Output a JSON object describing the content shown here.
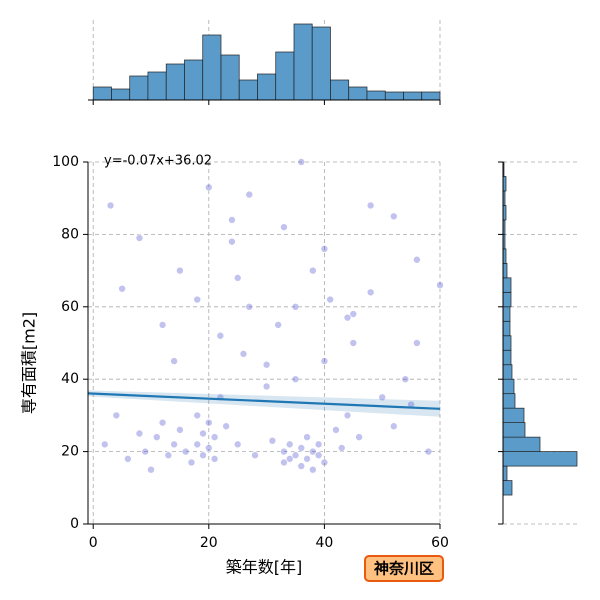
{
  "chart_data": [
    {
      "type": "scatter",
      "xlabel": "築年数[年]",
      "ylabel": "専有面積[m2]",
      "x": [
        2,
        4,
        6,
        8,
        9,
        10,
        11,
        12,
        13,
        14,
        15,
        16,
        17,
        18,
        18,
        19,
        19,
        20,
        20,
        21,
        21,
        22,
        23,
        24,
        25,
        26,
        27,
        28,
        30,
        31,
        32,
        33,
        33,
        34,
        34,
        35,
        35,
        36,
        36,
        37,
        37,
        38,
        38,
        39,
        39,
        40,
        40,
        41,
        42,
        43,
        44,
        45,
        46,
        48,
        50,
        52,
        54,
        56,
        58,
        60,
        5,
        8,
        12,
        15,
        18,
        20,
        22,
        24,
        27,
        30,
        33,
        36,
        38,
        40,
        44,
        48,
        52,
        56,
        3,
        14,
        25,
        35,
        45,
        55
      ],
      "y": [
        22,
        30,
        18,
        25,
        20,
        15,
        24,
        28,
        19,
        22,
        26,
        20,
        17,
        30,
        22,
        25,
        19,
        28,
        21,
        24,
        18,
        35,
        27,
        84,
        22,
        47,
        91,
        19,
        38,
        23,
        55,
        20,
        17,
        22,
        18,
        40,
        19,
        21,
        16,
        24,
        18,
        20,
        15,
        22,
        19,
        45,
        17,
        62,
        26,
        21,
        30,
        58,
        24,
        88,
        35,
        27,
        40,
        73,
        20,
        66,
        65,
        79,
        55,
        70,
        62,
        93,
        52,
        78,
        60,
        44,
        82,
        100,
        70,
        76,
        57,
        64,
        85,
        50,
        88,
        45,
        68,
        60,
        50,
        33
      ],
      "color": "#5050d0",
      "xlim": [
        -0.9,
        60
      ],
      "ylim": [
        0,
        100
      ],
      "xticks": [
        0,
        20,
        40,
        60
      ],
      "yticks": [
        0,
        20,
        40,
        60,
        80,
        100
      ],
      "grid": true,
      "regression": {
        "label": "y=-0.07x+36.02",
        "slope": -0.07,
        "intercept": 36.02,
        "color": "#1f77b4"
      },
      "annotation": "神奈川区"
    },
    {
      "type": "histogram",
      "orientation": "vertical",
      "color": "#5a9bca",
      "bins": [
        0,
        3.16,
        6.32,
        9.47,
        12.63,
        15.79,
        18.95,
        22.11,
        25.26,
        28.42,
        31.58,
        34.74,
        37.89,
        41.05,
        44.21,
        47.37,
        50.53,
        53.68,
        56.84,
        60
      ],
      "counts": [
        13,
        11,
        24,
        28,
        36,
        40,
        65,
        45,
        20,
        26,
        48,
        76,
        73,
        20,
        13,
        9,
        8,
        8,
        8
      ]
    },
    {
      "type": "histogram",
      "orientation": "horizontal",
      "color": "#5a9bca",
      "bins": [
        0,
        4,
        8,
        12,
        16,
        20,
        24,
        28,
        32,
        36,
        40,
        44,
        48,
        52,
        56,
        60,
        64,
        68,
        72,
        76,
        80,
        84,
        88,
        92,
        96,
        100
      ],
      "counts": [
        0,
        0,
        9,
        4,
        74,
        37,
        22,
        21,
        12,
        11,
        9,
        8,
        8,
        7,
        7,
        8,
        8,
        4,
        3,
        2,
        2,
        3,
        2,
        3,
        1
      ]
    }
  ]
}
